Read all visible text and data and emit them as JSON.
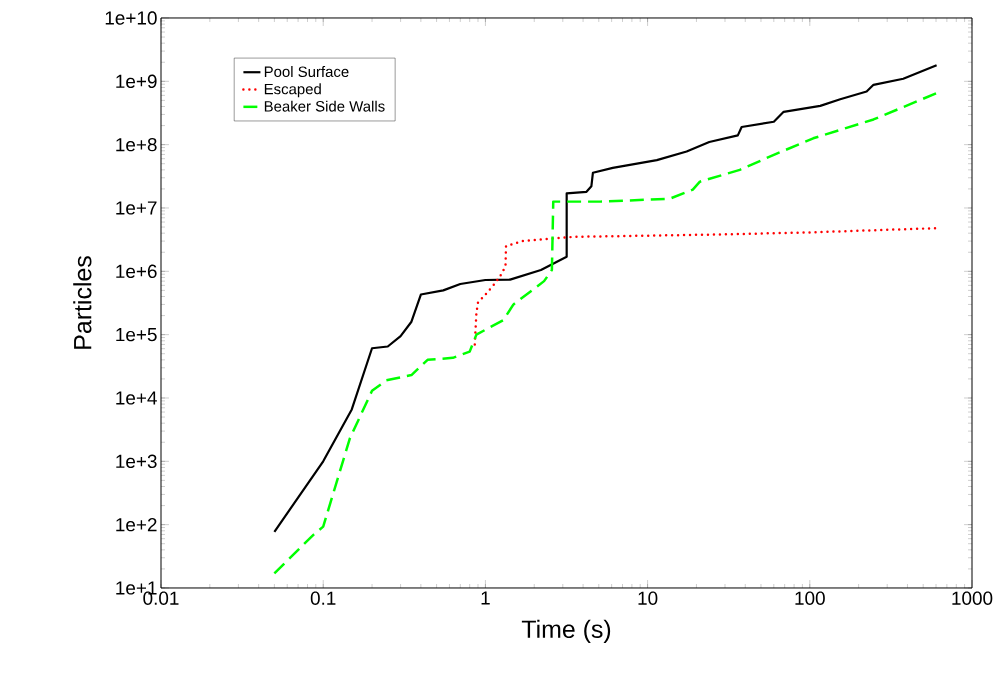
{
  "chart_data": {
    "type": "line",
    "xlabel": "Time (s)",
    "ylabel": "Particles",
    "log": "xy",
    "xlim": [
      0.01,
      1000
    ],
    "xticks": [
      0.01,
      0.1,
      1,
      10,
      100,
      1000
    ],
    "ylim": [
      10,
      10000000000
    ],
    "yticks": [
      {
        "value": 10,
        "label": "1e+1"
      },
      {
        "value": 100,
        "label": "1e+2"
      },
      {
        "value": 1000,
        "label": "1e+3"
      },
      {
        "value": 10000,
        "label": "1e+4"
      },
      {
        "value": 100000,
        "label": "1e+5"
      },
      {
        "value": 1000000,
        "label": "1e+6"
      },
      {
        "value": 10000000,
        "label": "1e+7"
      },
      {
        "value": 100000000,
        "label": "1e+8"
      },
      {
        "value": 1000000000,
        "label": "1e+9"
      },
      {
        "value": 10000000000,
        "label": "1e+10"
      }
    ],
    "grid": false,
    "legend": "top left",
    "marker": "none",
    "series": [
      {
        "name": "Pool Surface",
        "color": "#000000",
        "line_style": "solid",
        "x": [
          0.05,
          0.1,
          0.15,
          0.2,
          0.25,
          0.3,
          0.35,
          0.4,
          0.55,
          0.7,
          1.0,
          1.42,
          2.2,
          3.17,
          3.17,
          4.2,
          4.5,
          4.6,
          6.1,
          11.4,
          17.4,
          24,
          36,
          38,
          60,
          69,
          116,
          154,
          224,
          247,
          377,
          605
        ],
        "values": [
          77,
          1000,
          6600,
          61000,
          65000,
          95000,
          160000,
          430000,
          500000,
          630000,
          730000,
          740000,
          1050000,
          1700000,
          17000000,
          18000000,
          22000000,
          36000000,
          43000000,
          57000000,
          78000000,
          110000000,
          140000000,
          190000000,
          230000000,
          330000000,
          410000000,
          520000000,
          690000000,
          880000000,
          1100000000,
          1800000000
        ]
      },
      {
        "name": "Escaped",
        "color": "#ff0000",
        "line_style": "dotted",
        "x": [
          0.86,
          0.88,
          0.9,
          1.0,
          1.12,
          1.23,
          1.33,
          1.34,
          1.7,
          3.5,
          25,
          95,
          605
        ],
        "values": [
          70000,
          220000,
          320000,
          430000,
          600000,
          830000,
          1200000,
          2500000,
          3000000,
          3500000,
          3800000,
          4100000,
          4800000
        ]
      },
      {
        "name": "Beaker Side Walls",
        "color": "#00ff00",
        "line_style": "dashed",
        "x": [
          0.05,
          0.087,
          0.1,
          0.146,
          0.2,
          0.245,
          0.35,
          0.44,
          0.63,
          0.8,
          0.88,
          1.29,
          1.49,
          2.3,
          2.57,
          2.62,
          5.1,
          13.7,
          19,
          21,
          37,
          60,
          105,
          247,
          605
        ],
        "values": [
          17,
          69,
          93,
          2300,
          13000,
          19000,
          23000,
          40000,
          43000,
          54000,
          100000,
          170000,
          300000,
          700000,
          1050000,
          12600000,
          12600000,
          14000000,
          19500000,
          26000000,
          40000000,
          69000000,
          126000000,
          250000000,
          650000000
        ]
      }
    ]
  }
}
